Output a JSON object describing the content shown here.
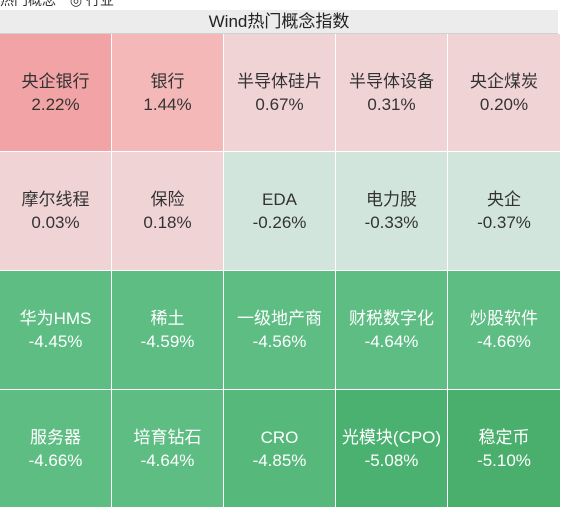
{
  "topbar": {
    "items": [
      "热门概念",
      "◎ 行业"
    ]
  },
  "title": "Wind热门概念指数",
  "tiles": [
    {
      "name": "央企银行",
      "pct": "2.22%",
      "value": 2.22,
      "color": "#f2a3a5",
      "tone": "up"
    },
    {
      "name": "银行",
      "pct": "1.44%",
      "value": 1.44,
      "color": "#f4b8b9",
      "tone": "up"
    },
    {
      "name": "半导体硅片",
      "pct": "0.67%",
      "value": 0.67,
      "color": "#f0d4d5",
      "tone": "up"
    },
    {
      "name": "半导体设备",
      "pct": "0.31%",
      "value": 0.31,
      "color": "#f0d4d5",
      "tone": "up"
    },
    {
      "name": "央企煤炭",
      "pct": "0.20%",
      "value": 0.2,
      "color": "#f0d4d5",
      "tone": "up"
    },
    {
      "name": "摩尔线程",
      "pct": "0.03%",
      "value": 0.03,
      "color": "#f0d4d5",
      "tone": "up"
    },
    {
      "name": "保险",
      "pct": "0.18%",
      "value": 0.18,
      "color": "#f0d4d5",
      "tone": "up"
    },
    {
      "name": "EDA",
      "pct": "-0.26%",
      "value": -0.26,
      "color": "#d2e5dc",
      "tone": "light"
    },
    {
      "name": "电力股",
      "pct": "-0.33%",
      "value": -0.33,
      "color": "#d2e5dc",
      "tone": "light"
    },
    {
      "name": "央企",
      "pct": "-0.37%",
      "value": -0.37,
      "color": "#d2e5dc",
      "tone": "light"
    },
    {
      "name": "华为HMS",
      "pct": "-4.45%",
      "value": -4.45,
      "color": "#5dbd83",
      "tone": "down"
    },
    {
      "name": "稀土",
      "pct": "-4.59%",
      "value": -4.59,
      "color": "#5dbd83",
      "tone": "down"
    },
    {
      "name": "一级地产商",
      "pct": "-4.56%",
      "value": -4.56,
      "color": "#5dbd83",
      "tone": "down"
    },
    {
      "name": "财税数字化",
      "pct": "-4.64%",
      "value": -4.64,
      "color": "#5dbd83",
      "tone": "down"
    },
    {
      "name": "炒股软件",
      "pct": "-4.66%",
      "value": -4.66,
      "color": "#5dbd83",
      "tone": "down"
    },
    {
      "name": "服务器",
      "pct": "-4.66%",
      "value": -4.66,
      "color": "#5dbd83",
      "tone": "down"
    },
    {
      "name": "培育钻石",
      "pct": "-4.64%",
      "value": -4.64,
      "color": "#5dbd83",
      "tone": "down"
    },
    {
      "name": "CRO",
      "pct": "-4.85%",
      "value": -4.85,
      "color": "#57b87c",
      "tone": "down"
    },
    {
      "name": "光模块(CPO)",
      "pct": "-5.08%",
      "value": -5.08,
      "color": "#4bb170",
      "tone": "down"
    },
    {
      "name": "稳定币",
      "pct": "-5.10%",
      "value": -5.1,
      "color": "#4aaf6d",
      "tone": "down"
    }
  ]
}
